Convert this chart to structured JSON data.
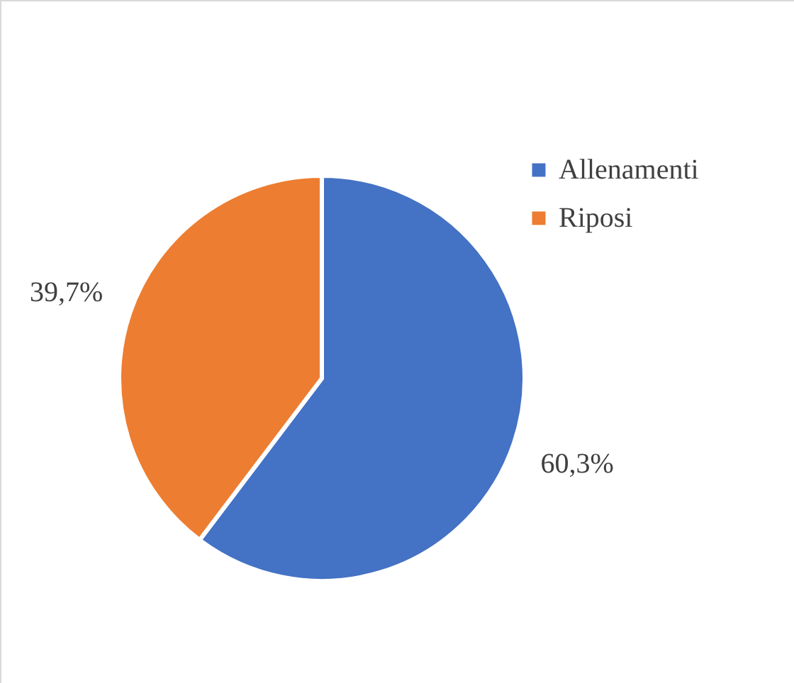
{
  "chart_data": {
    "type": "pie",
    "categories": [
      "Allenamenti",
      "Riposi"
    ],
    "values": [
      60.3,
      39.7
    ],
    "colors": [
      "#4472c4",
      "#ed7d31"
    ],
    "value_labels": [
      "60,3%",
      "39,7%"
    ],
    "legend": "right"
  }
}
